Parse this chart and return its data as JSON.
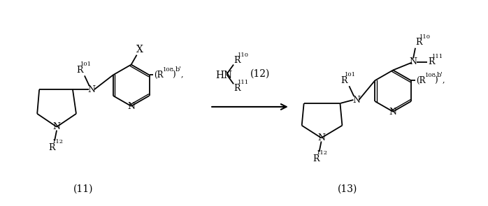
{
  "bg_color": "#ffffff",
  "fig_width": 6.98,
  "fig_height": 2.95,
  "dpi": 100,
  "compounds": {
    "c11_label": "(11)",
    "c12_label": "(12)",
    "c13_label": "(13)"
  }
}
